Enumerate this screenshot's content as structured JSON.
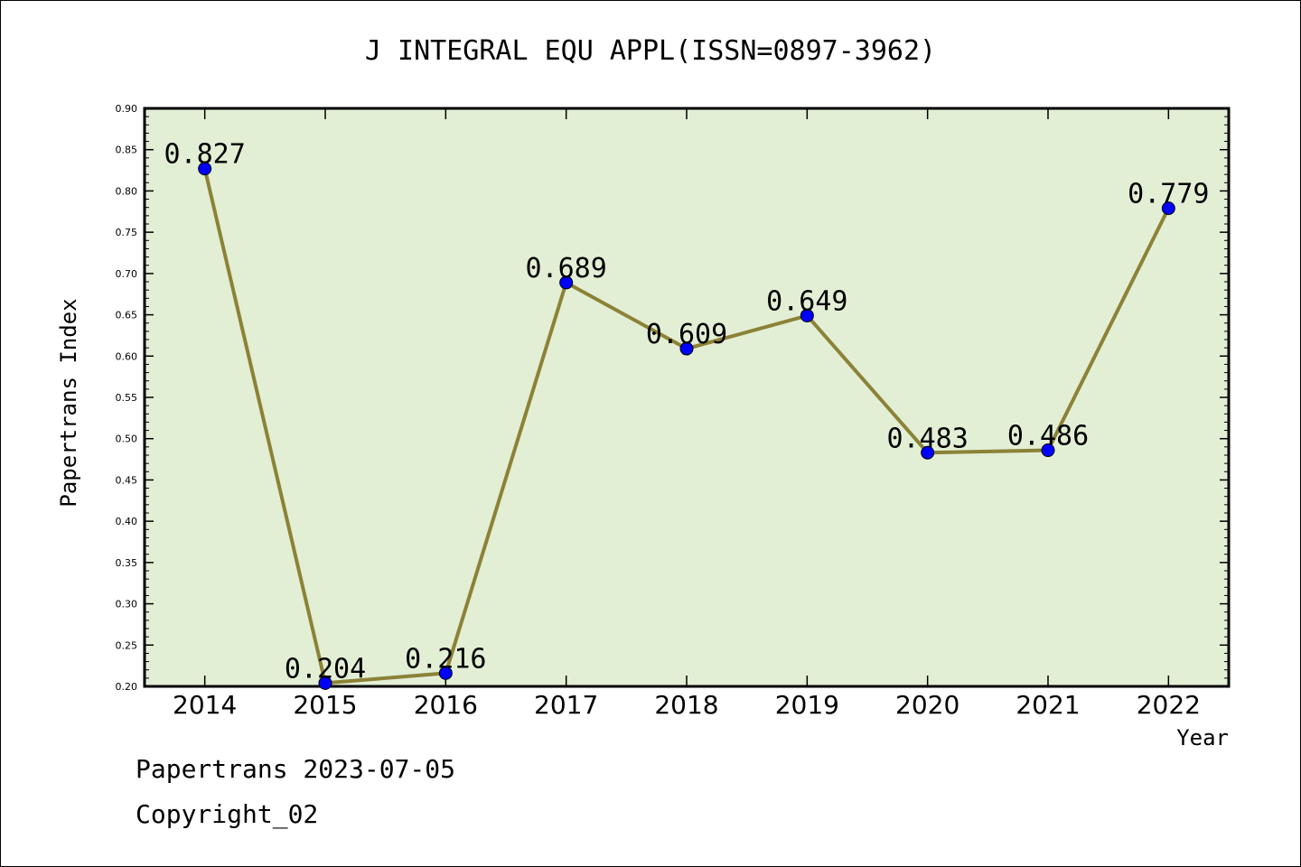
{
  "chart_data": {
    "type": "line",
    "title": "J INTEGRAL EQU APPL(ISSN=0897-3962)",
    "xlabel": "Year",
    "ylabel": "Papertrans Index",
    "categories": [
      "2014",
      "2015",
      "2016",
      "2017",
      "2018",
      "2019",
      "2020",
      "2021",
      "2022"
    ],
    "values": [
      0.827,
      0.204,
      0.216,
      0.689,
      0.609,
      0.649,
      0.483,
      0.486,
      0.779
    ],
    "data_labels": [
      "0.827",
      "0.204",
      "0.216",
      "0.689",
      "0.609",
      "0.649",
      "0.483",
      "0.486",
      "0.779"
    ],
    "ylim": [
      0.2,
      0.9
    ],
    "yticks": [
      "0.20",
      "0.25",
      "0.30",
      "0.35",
      "0.40",
      "0.45",
      "0.50",
      "0.55",
      "0.60",
      "0.65",
      "0.70",
      "0.75",
      "0.80",
      "0.85",
      "0.90"
    ],
    "grid": false,
    "legend": "none",
    "colors": {
      "plot_background": "#e2efd4",
      "line": "#8c8237",
      "marker": "#0000ff"
    }
  },
  "footer": {
    "line1": "Papertrans 2023-07-05",
    "line2": "Copyright_02"
  }
}
